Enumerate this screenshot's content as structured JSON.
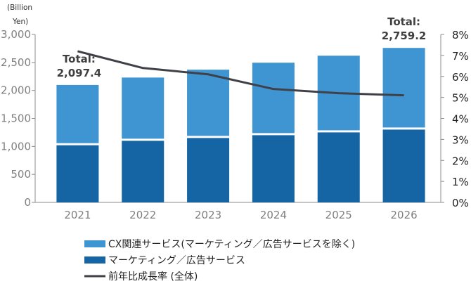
{
  "chart_data": {
    "type": "bar",
    "stacked": true,
    "categories": [
      "2021",
      "2022",
      "2023",
      "2024",
      "2025",
      "2026"
    ],
    "series": [
      {
        "name": "マーケティング／広告サービス",
        "values": [
          1020,
          1100,
          1150,
          1200,
          1250,
          1300
        ],
        "color": "#1565a5",
        "axis": "left"
      },
      {
        "name": "CX関連サービス(マーケティング／広告サービスを除く)",
        "values": [
          1077.4,
          1130,
          1220,
          1295,
          1370,
          1459.2
        ],
        "color": "#3f95d2",
        "axis": "left"
      },
      {
        "name": "前年比成長率 (全体)",
        "type": "line",
        "values": [
          7.2,
          6.4,
          6.1,
          5.4,
          5.2,
          5.1
        ],
        "color": "#404048",
        "axis": "right",
        "unit": "%"
      }
    ],
    "ylabel_lines": [
      "(Billion",
      "Yen)"
    ],
    "ylim": [
      0,
      3000
    ],
    "yticks": [
      "0",
      "500",
      "1,000",
      "1,500",
      "2,000",
      "2,500",
      "3,000"
    ],
    "y2lim": [
      0,
      8
    ],
    "y2ticks": [
      "0%",
      "1%",
      "2%",
      "3%",
      "4%",
      "5%",
      "6%",
      "7%",
      "8%"
    ],
    "annotations": [
      {
        "category": "2021",
        "lines": [
          "Total:",
          "2,097.4"
        ]
      },
      {
        "category": "2026",
        "lines": [
          "Total:",
          "2,759.2"
        ]
      }
    ],
    "grid": false,
    "legend_position": "bottom"
  }
}
